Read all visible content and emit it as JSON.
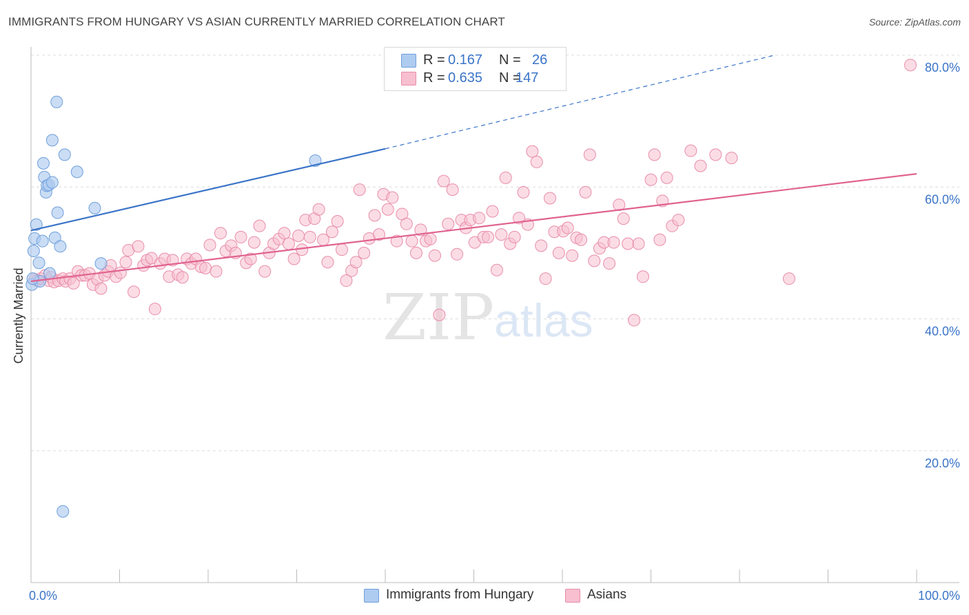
{
  "title": "IMMIGRANTS FROM HUNGARY VS ASIAN CURRENTLY MARRIED CORRELATION CHART",
  "source": "Source: ZipAtlas.com",
  "watermark": {
    "zip": "ZIP",
    "atlas": "atlas"
  },
  "legend": {
    "r_label": "R =",
    "n_label": "N =",
    "rows": [
      {
        "r": "0.167",
        "n": "26"
      },
      {
        "r": "0.635",
        "n": "147"
      }
    ]
  },
  "colors": {
    "hungary_fill": "#aecbf0",
    "hungary_stroke": "#6f9fdc",
    "hungary_line": "#3a74c8",
    "asian_fill": "#f7bfd0",
    "asian_stroke": "#e88daa",
    "asian_line": "#e0628f",
    "tick_label": "#3a74c8",
    "grid": "#dcdcdc"
  },
  "chart_data": {
    "type": "scatter",
    "title": "IMMIGRANTS FROM HUNGARY VS ASIAN CURRENTLY MARRIED CORRELATION CHART",
    "xlabel": "",
    "ylabel": "Currently Married",
    "xlim": [
      0,
      100
    ],
    "ylim": [
      0,
      82
    ],
    "x_tick_labels": [
      "0.0%",
      "100.0%"
    ],
    "y_ticks": [
      20,
      40,
      60,
      80
    ],
    "y_tick_labels": [
      "20.0%",
      "40.0%",
      "60.0%",
      "80.0%"
    ],
    "grid": true,
    "legend_position": "top-center",
    "series": [
      {
        "name": "Immigrants from Hungary",
        "r": 0.167,
        "n": 26,
        "trend": {
          "x0": 0,
          "y0": 53.4,
          "x1": 40,
          "y1": 65.8,
          "dashed_to_x": 84,
          "dashed_to_y": 80.0
        },
        "points": [
          [
            0.1,
            45.2
          ],
          [
            0.3,
            50.3
          ],
          [
            0.4,
            52.2
          ],
          [
            0.6,
            54.3
          ],
          [
            0.9,
            48.5
          ],
          [
            1.0,
            45.7
          ],
          [
            1.3,
            51.8
          ],
          [
            1.4,
            63.6
          ],
          [
            1.5,
            61.5
          ],
          [
            1.7,
            59.2
          ],
          [
            1.8,
            60.2
          ],
          [
            2.0,
            60.3
          ],
          [
            2.1,
            46.9
          ],
          [
            2.4,
            67.1
          ],
          [
            2.4,
            60.7
          ],
          [
            2.7,
            52.3
          ],
          [
            2.9,
            72.9
          ],
          [
            3.0,
            56.1
          ],
          [
            3.3,
            51.0
          ],
          [
            3.6,
            10.8
          ],
          [
            3.8,
            64.9
          ],
          [
            5.2,
            62.3
          ],
          [
            7.2,
            56.8
          ],
          [
            7.9,
            48.4
          ],
          [
            32.1,
            64.0
          ],
          [
            0.2,
            46.1
          ]
        ]
      },
      {
        "name": "Asians",
        "r": 0.635,
        "n": 147,
        "trend": {
          "x0": 0,
          "y0": 45.7,
          "x1": 100,
          "y1": 62.0
        },
        "points": [
          [
            0.4,
            46.0
          ],
          [
            0.7,
            45.8
          ],
          [
            1.1,
            46.1
          ],
          [
            1.6,
            46.6
          ],
          [
            2.0,
            45.8
          ],
          [
            2.3,
            46.3
          ],
          [
            2.6,
            45.6
          ],
          [
            3.1,
            45.8
          ],
          [
            3.6,
            46.1
          ],
          [
            3.9,
            45.7
          ],
          [
            4.4,
            46.1
          ],
          [
            4.8,
            45.4
          ],
          [
            5.3,
            47.2
          ],
          [
            5.7,
            46.6
          ],
          [
            6.1,
            46.6
          ],
          [
            6.6,
            46.9
          ],
          [
            7.0,
            45.2
          ],
          [
            7.5,
            46.0
          ],
          [
            7.9,
            44.6
          ],
          [
            8.3,
            46.6
          ],
          [
            8.7,
            47.2
          ],
          [
            9.0,
            48.1
          ],
          [
            9.6,
            46.4
          ],
          [
            10.1,
            47.0
          ],
          [
            10.7,
            48.6
          ],
          [
            11.0,
            50.4
          ],
          [
            11.6,
            44.1
          ],
          [
            12.1,
            51.0
          ],
          [
            12.7,
            48.1
          ],
          [
            13.1,
            48.9
          ],
          [
            13.6,
            49.2
          ],
          [
            14.0,
            41.5
          ],
          [
            14.6,
            48.4
          ],
          [
            15.1,
            49.1
          ],
          [
            15.6,
            46.4
          ],
          [
            16.0,
            48.9
          ],
          [
            16.6,
            46.7
          ],
          [
            17.1,
            46.3
          ],
          [
            17.6,
            49.1
          ],
          [
            18.1,
            48.4
          ],
          [
            18.6,
            49.1
          ],
          [
            19.2,
            47.9
          ],
          [
            19.7,
            47.7
          ],
          [
            20.2,
            51.2
          ],
          [
            20.9,
            47.2
          ],
          [
            21.4,
            53.0
          ],
          [
            22.0,
            50.3
          ],
          [
            22.6,
            51.1
          ],
          [
            23.1,
            50.0
          ],
          [
            23.7,
            52.4
          ],
          [
            24.3,
            48.5
          ],
          [
            24.8,
            49.1
          ],
          [
            25.2,
            51.6
          ],
          [
            25.8,
            54.1
          ],
          [
            26.4,
            47.2
          ],
          [
            26.9,
            50.0
          ],
          [
            27.4,
            51.4
          ],
          [
            28.0,
            52.1
          ],
          [
            28.6,
            53.0
          ],
          [
            29.1,
            51.4
          ],
          [
            29.7,
            49.1
          ],
          [
            30.2,
            52.6
          ],
          [
            30.6,
            50.5
          ],
          [
            31.0,
            55.0
          ],
          [
            31.5,
            52.4
          ],
          [
            32.0,
            55.2
          ],
          [
            32.5,
            56.6
          ],
          [
            33.0,
            52.0
          ],
          [
            33.5,
            48.6
          ],
          [
            34.0,
            53.2
          ],
          [
            34.6,
            54.8
          ],
          [
            35.1,
            50.5
          ],
          [
            35.6,
            45.8
          ],
          [
            36.2,
            47.3
          ],
          [
            36.7,
            48.6
          ],
          [
            37.1,
            59.6
          ],
          [
            37.6,
            50.0
          ],
          [
            38.2,
            52.2
          ],
          [
            38.8,
            55.7
          ],
          [
            39.3,
            52.8
          ],
          [
            39.8,
            58.9
          ],
          [
            40.3,
            56.6
          ],
          [
            40.8,
            58.4
          ],
          [
            41.3,
            51.8
          ],
          [
            41.9,
            55.9
          ],
          [
            42.4,
            54.4
          ],
          [
            43.0,
            51.8
          ],
          [
            43.5,
            50.0
          ],
          [
            44.0,
            53.5
          ],
          [
            44.6,
            51.8
          ],
          [
            45.1,
            52.1
          ],
          [
            45.6,
            49.6
          ],
          [
            46.1,
            40.6
          ],
          [
            46.6,
            60.9
          ],
          [
            47.1,
            54.4
          ],
          [
            47.6,
            59.6
          ],
          [
            48.1,
            49.8
          ],
          [
            48.6,
            55.0
          ],
          [
            49.1,
            53.8
          ],
          [
            49.6,
            55.0
          ],
          [
            50.1,
            51.6
          ],
          [
            50.6,
            55.3
          ],
          [
            51.1,
            52.4
          ],
          [
            51.6,
            52.4
          ],
          [
            52.1,
            56.3
          ],
          [
            52.6,
            47.4
          ],
          [
            53.1,
            52.8
          ],
          [
            53.6,
            61.4
          ],
          [
            54.1,
            51.4
          ],
          [
            54.6,
            52.4
          ],
          [
            55.1,
            55.3
          ],
          [
            55.6,
            59.2
          ],
          [
            56.1,
            54.3
          ],
          [
            56.6,
            65.4
          ],
          [
            57.1,
            63.8
          ],
          [
            57.6,
            51.1
          ],
          [
            58.1,
            46.1
          ],
          [
            58.6,
            58.3
          ],
          [
            59.1,
            53.2
          ],
          [
            59.6,
            50.0
          ],
          [
            60.1,
            53.3
          ],
          [
            60.6,
            53.8
          ],
          [
            61.1,
            49.6
          ],
          [
            61.6,
            52.3
          ],
          [
            62.1,
            52.0
          ],
          [
            62.6,
            59.2
          ],
          [
            63.1,
            64.9
          ],
          [
            63.6,
            48.8
          ],
          [
            64.2,
            50.7
          ],
          [
            64.7,
            51.6
          ],
          [
            65.3,
            48.4
          ],
          [
            65.8,
            51.6
          ],
          [
            66.4,
            57.3
          ],
          [
            66.9,
            55.2
          ],
          [
            67.4,
            51.4
          ],
          [
            68.1,
            39.8
          ],
          [
            68.6,
            51.4
          ],
          [
            69.1,
            46.4
          ],
          [
            70.0,
            61.1
          ],
          [
            70.4,
            64.9
          ],
          [
            71.0,
            52.0
          ],
          [
            71.3,
            57.9
          ],
          [
            71.8,
            61.4
          ],
          [
            72.4,
            54.1
          ],
          [
            73.1,
            55.0
          ],
          [
            74.5,
            65.5
          ],
          [
            75.6,
            63.2
          ],
          [
            77.3,
            64.9
          ],
          [
            79.1,
            64.4
          ],
          [
            85.6,
            46.1
          ],
          [
            99.3,
            78.5
          ]
        ]
      }
    ]
  }
}
